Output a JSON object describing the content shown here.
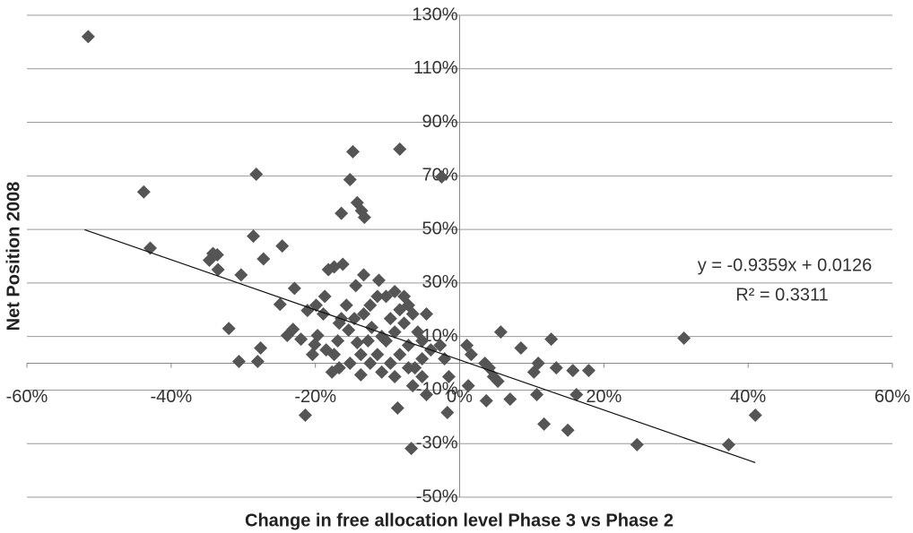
{
  "chart_data": {
    "type": "scatter",
    "x_label": "Change in free allocation  level Phase 3 vs Phase 2",
    "y_label": "Net Position 2008",
    "color": "#555555",
    "xlim": [
      -60,
      60
    ],
    "ylim": [
      -50,
      130
    ],
    "xticks": [
      {
        "value": -60,
        "label": "-60%"
      },
      {
        "value": -40,
        "label": "-40%"
      },
      {
        "value": -20,
        "label": "-20%"
      },
      {
        "value": 0,
        "label": "0%"
      },
      {
        "value": 20,
        "label": "20%"
      },
      {
        "value": 40,
        "label": "40%"
      },
      {
        "value": 60,
        "label": "60%"
      }
    ],
    "yticks": [
      {
        "value": -50,
        "label": "-50%"
      },
      {
        "value": -30,
        "label": "-30%"
      },
      {
        "value": -10,
        "label": "-10%"
      },
      {
        "value": 10,
        "label": "10%"
      },
      {
        "value": 30,
        "label": "30%"
      },
      {
        "value": 50,
        "label": "50%"
      },
      {
        "value": 70,
        "label": "70%"
      },
      {
        "value": 90,
        "label": "90%"
      },
      {
        "value": 110,
        "label": "110%"
      },
      {
        "value": 130,
        "label": "130%"
      }
    ],
    "grid": true,
    "x": [
      -51.5,
      -43.8,
      -42.9,
      -28.2,
      -14.8,
      -8.3,
      -2.5,
      -15.2,
      -14.2,
      -13.6,
      -13.2,
      -16.4,
      -28.6,
      -24.6,
      -27.2,
      -34.2,
      -33.6,
      -34.7,
      -33.5,
      -30.3,
      -17.4,
      -16.2,
      -18.2,
      -13.3,
      -14.4,
      -11.2,
      -22.9,
      -24.9,
      -32,
      -30.6,
      -27.6,
      -28,
      -21.4,
      -23.1,
      -23.9,
      -20.1,
      -19.7,
      -22,
      -21.1,
      -18.9,
      -16.7,
      -16.9,
      -17.4,
      -16.7,
      -15.2,
      -18.5,
      -15.7,
      -14.6,
      -13.3,
      -12.4,
      -11.4,
      -10.2,
      -9,
      -7.7,
      -12.2,
      -12.7,
      -11.4,
      -10.2,
      -9,
      -7.7,
      -6.5,
      -4.6,
      -5.8,
      -7.1,
      -8.3,
      -9.6,
      -10.8,
      -9,
      -7.1,
      -5.2,
      -4,
      -2.7,
      -2.1,
      -5.2,
      -6.5,
      -4.6,
      -8.6,
      -6.7,
      -1.7,
      -1.5,
      1,
      1.6,
      1.2,
      3.5,
      4.1,
      4.7,
      5.3,
      3.7,
      5.7,
      7,
      8.5,
      10.3,
      10.9,
      10.7,
      12.7,
      13.4,
      11.7,
      15,
      15.7,
      17.9,
      16.2,
      24.6,
      31.1,
      37.3,
      41,
      -16.4,
      -15.4,
      -14.2,
      -13.7,
      -13.7,
      -12.4,
      -10.8,
      -9.6,
      -8.3,
      -7.1,
      -6.2,
      -5.2,
      -18.7,
      -19.9,
      -17.7,
      -20.4
    ],
    "values": [
      122,
      64,
      43,
      70.6,
      79,
      80,
      69.6,
      68.6,
      60,
      57,
      54.5,
      56,
      47.5,
      43.8,
      39,
      41,
      40.5,
      38.5,
      35,
      33,
      36,
      37,
      35,
      33,
      29,
      31,
      28,
      22,
      13,
      0.7,
      5.7,
      0.7,
      -19.4,
      12.7,
      10.4,
      7,
      10.4,
      9,
      19.7,
      18.4,
      15,
      8.4,
      3.3,
      -1.7,
      0,
      5,
      21.7,
      16.7,
      18.4,
      21.7,
      25,
      25,
      26.8,
      25,
      13.4,
      8.4,
      3.3,
      8.4,
      11.7,
      15,
      18.4,
      18.4,
      11.7,
      6.7,
      3.3,
      0,
      -3.3,
      -5,
      -1.7,
      1.7,
      5,
      6.7,
      1.7,
      -5,
      -8.4,
      -11.7,
      -16.7,
      -31.8,
      -18.4,
      -5,
      6.7,
      3.3,
      -8.4,
      0,
      -1.7,
      -5,
      -6.7,
      -14,
      11.7,
      -13.4,
      5.7,
      -3.3,
      0,
      -11.7,
      9,
      -1.7,
      -22.7,
      -25,
      -2.7,
      -2.7,
      -11.7,
      -30.4,
      9.4,
      -30.4,
      -19.4,
      16.7,
      12.4,
      7.7,
      3.3,
      -4.3,
      0,
      10,
      16.7,
      20,
      21.7,
      -1.7,
      8.4,
      25,
      21.7,
      -3.3,
      3.3
    ],
    "trendline": {
      "x": [
        -52,
        41
      ],
      "y": [
        49.9,
        -37.1
      ]
    },
    "annotations": [
      "y = -0.9359x + 0.0126",
      "R² = 0.3311"
    ]
  }
}
